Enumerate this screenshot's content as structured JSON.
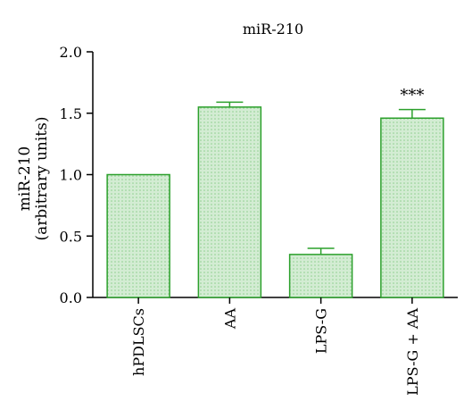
{
  "chart_data": {
    "type": "bar",
    "title": "miR-210",
    "ylabel_lines": [
      "miR-210",
      "(arbitrary units)"
    ],
    "xlabel": "",
    "categories": [
      "hPDLSCs",
      "AA",
      "LPS-G",
      "LPS-G + AA"
    ],
    "values": [
      1.0,
      1.55,
      0.35,
      1.46
    ],
    "errors": [
      0.0,
      0.04,
      0.05,
      0.07
    ],
    "annotations": [
      "",
      "",
      "",
      "***"
    ],
    "ylim": [
      0,
      2.0
    ],
    "yticks": [
      "0.0",
      "0.5",
      "1.0",
      "1.5",
      "2.0"
    ],
    "grid": false,
    "colors": {
      "bar_fill": "#d3ecd3",
      "bar_stroke": "#2ca02c",
      "axis": "#000000"
    }
  }
}
